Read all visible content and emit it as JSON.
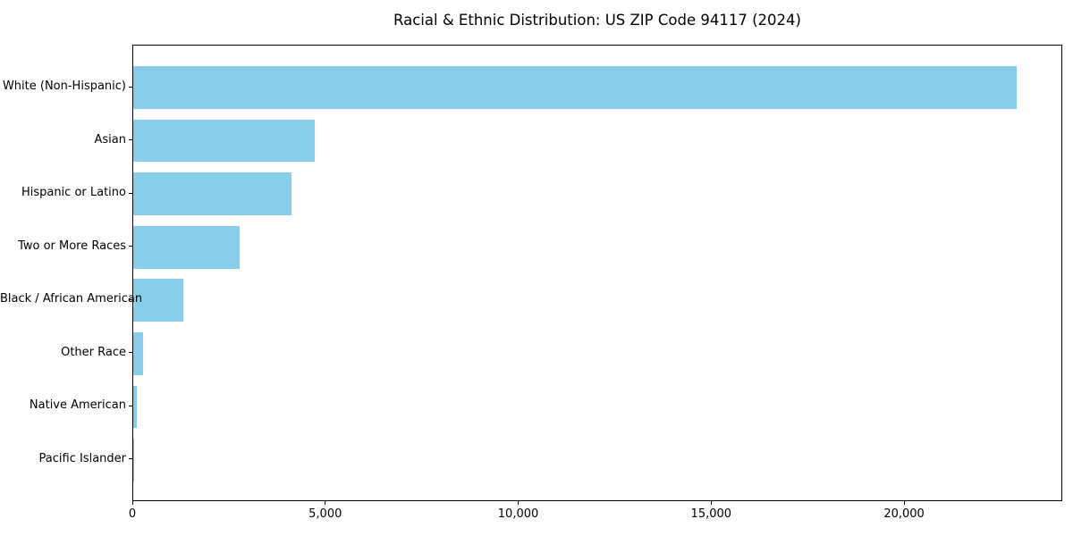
{
  "figure": {
    "background": "#FFFFFF"
  },
  "chart_data": {
    "type": "bar",
    "orientation": "horizontal",
    "title": "Racial & Ethnic Distribution: US ZIP Code 94117 (2024)",
    "categories": [
      "White (Non-Hispanic)",
      "Asian",
      "Hispanic or Latino",
      "Two or More Races",
      "Black / African American",
      "Other Race",
      "Native American",
      "Pacific Islander"
    ],
    "values": [
      22900,
      4700,
      4100,
      2750,
      1300,
      250,
      100,
      20
    ],
    "xlabel": "",
    "ylabel": "",
    "xlim": [
      0,
      24100
    ],
    "xticks": [
      0,
      5000,
      10000,
      15000,
      20000
    ],
    "xtick_labels": [
      "0",
      "5,000",
      "10,000",
      "15,000",
      "20,000"
    ],
    "bar_color": "#87CEEB",
    "axis_color": "#000000",
    "text_color": "#000000",
    "grid": false,
    "legend": false
  }
}
